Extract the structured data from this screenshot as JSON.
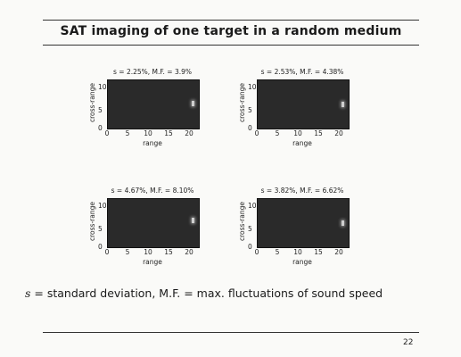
{
  "slide": {
    "title": "SAT imaging of one target in a random medium",
    "caption_symbol": "s",
    "caption_rest": " = standard deviation, M.F. = max. fluctuations of sound speed",
    "page_number": "22"
  },
  "panels": [
    {
      "title": "s = 2.25%, M.F. = 3.9%",
      "xlabel": "range",
      "ylabel": "cross-range",
      "xticks": [
        "0",
        "5",
        "10",
        "15",
        "20"
      ],
      "yticks": [
        "10",
        "5",
        "0"
      ],
      "spot": {
        "x": 21.5,
        "y": 5.8
      }
    },
    {
      "title": "s = 2.53%, M.F. = 4.38%",
      "xlabel": "range",
      "ylabel": "cross-range",
      "xticks": [
        "0",
        "5",
        "10",
        "15",
        "20"
      ],
      "yticks": [
        "10",
        "5",
        "0"
      ],
      "spot": {
        "x": 21.5,
        "y": 5.5
      }
    },
    {
      "title": "s = 4.67%, M.F. = 8.10%",
      "xlabel": "range",
      "ylabel": "cross-range",
      "xticks": [
        "0",
        "5",
        "10",
        "15",
        "20"
      ],
      "yticks": [
        "10",
        "5",
        "0"
      ],
      "spot": {
        "x": 21.5,
        "y": 6.2
      }
    },
    {
      "title": "s = 3.82%, M.F. = 6.62%",
      "xlabel": "range",
      "ylabel": "cross-range",
      "xticks": [
        "0",
        "5",
        "10",
        "15",
        "20"
      ],
      "yticks": [
        "10",
        "5",
        "0"
      ],
      "spot": {
        "x": 21.5,
        "y": 5.6
      }
    }
  ]
}
